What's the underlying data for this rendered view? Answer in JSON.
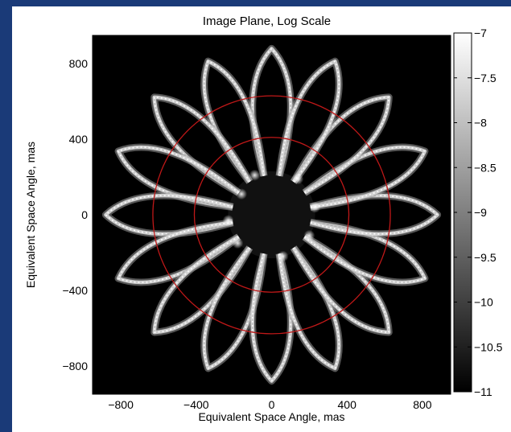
{
  "chart_data": {
    "type": "heatmap",
    "title": "Image Plane, Log Scale",
    "xlabel": "Equivalent Space Angle, mas",
    "ylabel": "Equivalent Space Angle, mas",
    "xlim": [
      -950,
      950
    ],
    "ylim": [
      -950,
      950
    ],
    "xticks": [
      -800,
      -400,
      0,
      400,
      800
    ],
    "yticks": [
      -800,
      -400,
      0,
      400,
      800
    ],
    "xtick_labels": [
      "−800",
      "−400",
      "0",
      "400",
      "800"
    ],
    "ytick_labels": [
      "−800",
      "−400",
      "0",
      "400",
      "800"
    ],
    "colorbar": {
      "range": [
        -11,
        -7
      ],
      "ticks": [
        -7,
        -7.5,
        -8,
        -8.5,
        -9,
        -9.5,
        -10,
        -10.5,
        -11
      ],
      "tick_labels": [
        "−7",
        "−7.5",
        "−8",
        "−8.5",
        "−9",
        "−9.5",
        "−10",
        "−10.5",
        "−11"
      ],
      "colormap": "gray"
    },
    "pattern": {
      "petals": 16,
      "petal_tip_radius": 880,
      "petal_base_radius": 210
    },
    "circles": [
      {
        "radius": 410,
        "color": "#c01818"
      },
      {
        "radius": 630,
        "color": "#c01818"
      }
    ],
    "grid": false
  }
}
